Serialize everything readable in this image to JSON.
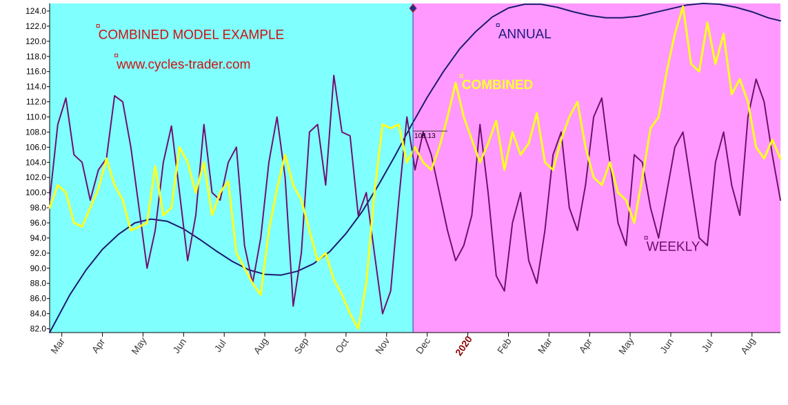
{
  "chart_data": {
    "type": "line",
    "title": "",
    "xlabel": "",
    "ylabel": "",
    "ylim": [
      81.5,
      125.0
    ],
    "yticks": [
      82.0,
      84.0,
      86.0,
      88.0,
      90.0,
      92.0,
      94.0,
      96.0,
      98.0,
      100.0,
      102.0,
      104.0,
      106.0,
      108.0,
      110.0,
      112.0,
      114.0,
      116.0,
      118.0,
      120.0,
      122.0,
      124.0
    ],
    "x_unit": "months since start of March 2019",
    "x_range": [
      -0.3,
      17.7
    ],
    "month_ticks": [
      {
        "label": "Mar",
        "x": 0
      },
      {
        "label": "Apr",
        "x": 1
      },
      {
        "label": "May",
        "x": 2
      },
      {
        "label": "Jun",
        "x": 3
      },
      {
        "label": "Jul",
        "x": 4
      },
      {
        "label": "Aug",
        "x": 5
      },
      {
        "label": "Sep",
        "x": 6
      },
      {
        "label": "Oct",
        "x": 7
      },
      {
        "label": "Nov",
        "x": 8
      },
      {
        "label": "Dec",
        "x": 9
      },
      {
        "label": "2020",
        "x": 10,
        "is_year": true
      },
      {
        "label": "Feb",
        "x": 11
      },
      {
        "label": "Mar",
        "x": 12
      },
      {
        "label": "Apr",
        "x": 13
      },
      {
        "label": "May",
        "x": 14
      },
      {
        "label": "Jun",
        "x": 15
      },
      {
        "label": "Jul",
        "x": 16
      },
      {
        "label": "Aug",
        "x": 17
      }
    ],
    "regions": [
      {
        "name": "history",
        "x_start": -0.3,
        "x_end": 8.65,
        "color": "#80ffff"
      },
      {
        "name": "projection",
        "x_start": 8.65,
        "x_end": 17.7,
        "color": "#ff99ff"
      }
    ],
    "divider_x": 8.65,
    "last_value": {
      "label": "108.13",
      "value": 108.13
    },
    "annotations": [
      {
        "text": "COMBINED MODEL EXAMPLE",
        "x": 0.9,
        "y": 120.3,
        "color": "#cc1111",
        "bold": false
      },
      {
        "text": "www.cycles-trader.com",
        "x": 1.35,
        "y": 116.4,
        "color": "#cc1111",
        "bold": false
      },
      {
        "text": "ANNUAL",
        "x": 10.75,
        "y": 120.4,
        "color": "#1a1a7a",
        "bold": false
      },
      {
        "text": "COMBINED",
        "x": 9.85,
        "y": 113.7,
        "color": "#ffff33",
        "bold": true
      },
      {
        "text": "WEEKLY",
        "x": 14.4,
        "y": 92.3,
        "color": "#6b0f6b",
        "bold": false
      }
    ],
    "series": [
      {
        "name": "ANNUAL",
        "color": "#1a1a6e",
        "width": 2,
        "x": [
          -0.3,
          0.2,
          0.6,
          1.0,
          1.4,
          1.8,
          2.2,
          2.6,
          3.0,
          3.4,
          3.8,
          4.2,
          4.6,
          5.0,
          5.4,
          5.8,
          6.2,
          6.6,
          7.0,
          7.4,
          7.8,
          8.2,
          8.6,
          9.0,
          9.4,
          9.8,
          10.2,
          10.6,
          11.0,
          11.4,
          11.8,
          12.2,
          12.6,
          13.0,
          13.4,
          13.8,
          14.2,
          14.6,
          15.0,
          15.4,
          15.8,
          16.2,
          16.6,
          17.0,
          17.4,
          17.7
        ],
        "y": [
          81.5,
          86.5,
          89.8,
          92.5,
          94.5,
          96.0,
          96.5,
          96.2,
          95.2,
          93.8,
          92.3,
          90.9,
          89.8,
          89.2,
          89.1,
          89.6,
          90.6,
          92.2,
          94.6,
          97.5,
          101.0,
          104.8,
          108.8,
          112.6,
          116.0,
          119.0,
          121.3,
          123.2,
          124.4,
          124.9,
          124.9,
          124.5,
          123.9,
          123.4,
          123.1,
          123.1,
          123.3,
          123.8,
          124.3,
          124.8,
          125.0,
          124.9,
          124.5,
          123.9,
          123.1,
          122.7
        ]
      },
      {
        "name": "WEEKLY",
        "color": "#6e0f6e",
        "width": 2,
        "x": [
          -0.3,
          -0.1,
          0.1,
          0.3,
          0.5,
          0.7,
          0.9,
          1.1,
          1.3,
          1.5,
          1.7,
          1.9,
          2.1,
          2.3,
          2.5,
          2.7,
          2.9,
          3.1,
          3.3,
          3.5,
          3.7,
          3.9,
          4.1,
          4.3,
          4.5,
          4.7,
          4.9,
          5.1,
          5.3,
          5.5,
          5.7,
          5.9,
          6.1,
          6.3,
          6.5,
          6.7,
          6.9,
          7.1,
          7.3,
          7.5,
          7.7,
          7.9,
          8.1,
          8.3,
          8.5,
          8.7,
          8.9,
          9.1,
          9.3,
          9.5,
          9.7,
          9.9,
          10.1,
          10.3,
          10.5,
          10.7,
          10.9,
          11.1,
          11.3,
          11.5,
          11.7,
          11.9,
          12.1,
          12.3,
          12.5,
          12.7,
          12.9,
          13.1,
          13.3,
          13.5,
          13.7,
          13.9,
          14.1,
          14.3,
          14.5,
          14.7,
          14.9,
          15.1,
          15.3,
          15.5,
          15.7,
          15.9,
          16.1,
          16.3,
          16.5,
          16.7,
          16.9,
          17.1,
          17.3,
          17.5,
          17.7
        ],
        "y": [
          99.0,
          109.0,
          112.5,
          105.0,
          104.0,
          99.0,
          103.0,
          104.5,
          112.8,
          112.0,
          106.0,
          98.0,
          90.0,
          95.0,
          104.0,
          108.8,
          100.0,
          91.0,
          97.0,
          109.0,
          100.0,
          99.0,
          104.0,
          106.0,
          93.0,
          88.0,
          94.0,
          104.0,
          110.0,
          102.0,
          85.0,
          92.0,
          108.0,
          109.0,
          101.0,
          115.5,
          108.0,
          107.5,
          97.0,
          100.0,
          92.0,
          84.0,
          87.0,
          99.0,
          110.0,
          103.0,
          108.0,
          105.0,
          100.0,
          95.0,
          91.0,
          93.0,
          97.0,
          109.0,
          100.0,
          89.0,
          87.0,
          96.0,
          100.0,
          91.0,
          88.0,
          95.0,
          105.0,
          108.0,
          98.0,
          95.0,
          101.0,
          110.0,
          112.5,
          104.0,
          96.0,
          93.0,
          105.0,
          104.0,
          98.0,
          94.0,
          100.0,
          106.0,
          108.0,
          101.0,
          94.0,
          93.0,
          104.0,
          108.0,
          101.0,
          97.0,
          110.0,
          115.0,
          112.0,
          105.0,
          99.0
        ]
      },
      {
        "name": "COMBINED",
        "color": "#ffff22",
        "width": 3,
        "x": [
          -0.3,
          -0.1,
          0.1,
          0.3,
          0.5,
          0.7,
          0.9,
          1.1,
          1.3,
          1.5,
          1.7,
          1.9,
          2.1,
          2.3,
          2.5,
          2.7,
          2.9,
          3.1,
          3.3,
          3.5,
          3.7,
          3.9,
          4.1,
          4.3,
          4.5,
          4.7,
          4.9,
          5.1,
          5.3,
          5.5,
          5.7,
          5.9,
          6.1,
          6.3,
          6.5,
          6.7,
          6.9,
          7.1,
          7.3,
          7.5,
          7.7,
          7.9,
          8.1,
          8.3,
          8.5,
          8.7,
          8.9,
          9.1,
          9.3,
          9.5,
          9.7,
          9.9,
          10.1,
          10.3,
          10.5,
          10.7,
          10.9,
          11.1,
          11.3,
          11.5,
          11.7,
          11.9,
          12.1,
          12.3,
          12.5,
          12.7,
          12.9,
          13.1,
          13.3,
          13.5,
          13.7,
          13.9,
          14.1,
          14.3,
          14.5,
          14.7,
          14.9,
          15.1,
          15.3,
          15.5,
          15.7,
          15.9,
          16.1,
          16.3,
          16.5,
          16.7,
          16.9,
          17.1,
          17.3,
          17.5,
          17.7
        ],
        "y": [
          98.0,
          101.0,
          100.0,
          96.0,
          95.5,
          98.0,
          100.5,
          104.5,
          101.0,
          99.0,
          95.0,
          95.5,
          96.0,
          103.5,
          97.0,
          98.0,
          106.0,
          104.0,
          100.0,
          104.0,
          97.0,
          100.0,
          101.5,
          92.0,
          90.0,
          88.0,
          86.5,
          95.0,
          100.5,
          105.0,
          101.0,
          99.0,
          95.0,
          91.0,
          92.0,
          88.5,
          86.5,
          84.0,
          82.0,
          88.0,
          100.0,
          109.0,
          108.5,
          109.0,
          104.0,
          106.0,
          104.0,
          103.0,
          106.0,
          110.0,
          114.5,
          110.0,
          107.0,
          104.0,
          106.5,
          109.5,
          103.0,
          108.0,
          105.0,
          106.5,
          110.5,
          104.0,
          103.0,
          107.0,
          110.0,
          112.0,
          106.0,
          102.0,
          101.0,
          104.0,
          100.0,
          99.0,
          96.0,
          102.0,
          108.5,
          110.0,
          116.0,
          121.0,
          124.6,
          117.0,
          116.0,
          122.5,
          117.0,
          121.0,
          113.0,
          115.0,
          112.0,
          106.0,
          104.5,
          107.0,
          104.5
        ]
      }
    ]
  }
}
